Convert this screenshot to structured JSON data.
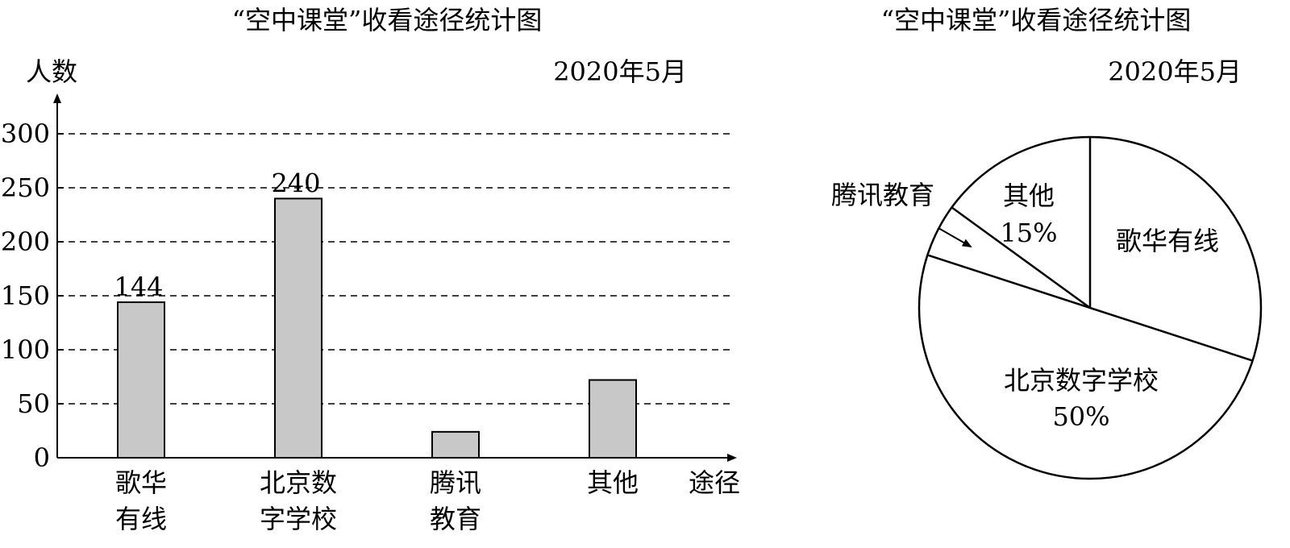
{
  "chart_data": [
    {
      "type": "bar",
      "title": "“空中课堂”收看途径统计图",
      "subtitle": "2020年5月",
      "ylabel": "人数",
      "xlabel": "途径",
      "ylim": [
        0,
        300
      ],
      "yticks": [
        0,
        50,
        100,
        150,
        200,
        250,
        300
      ],
      "grid": true,
      "categories": [
        [
          "歌华",
          "有线"
        ],
        [
          "北京数",
          "字学校"
        ],
        [
          "腾讯",
          "教育"
        ],
        [
          "其他"
        ]
      ],
      "values": [
        144,
        240,
        24,
        72
      ],
      "data_labels": [
        "144",
        "240",
        "",
        ""
      ],
      "bar_color": "#c8c8c8"
    },
    {
      "type": "pie",
      "title": "“空中课堂”收看途径统计图",
      "subtitle": "2020年5月",
      "slices": [
        {
          "label": "歌华有线",
          "value": 30,
          "text": ""
        },
        {
          "label": "北京数字学校",
          "value": 50,
          "text": "50%"
        },
        {
          "label": "腾讯教育",
          "value": 5,
          "text": ""
        },
        {
          "label": "其他",
          "value": 15,
          "text": "15%"
        }
      ],
      "fill": "#ffffff"
    }
  ]
}
